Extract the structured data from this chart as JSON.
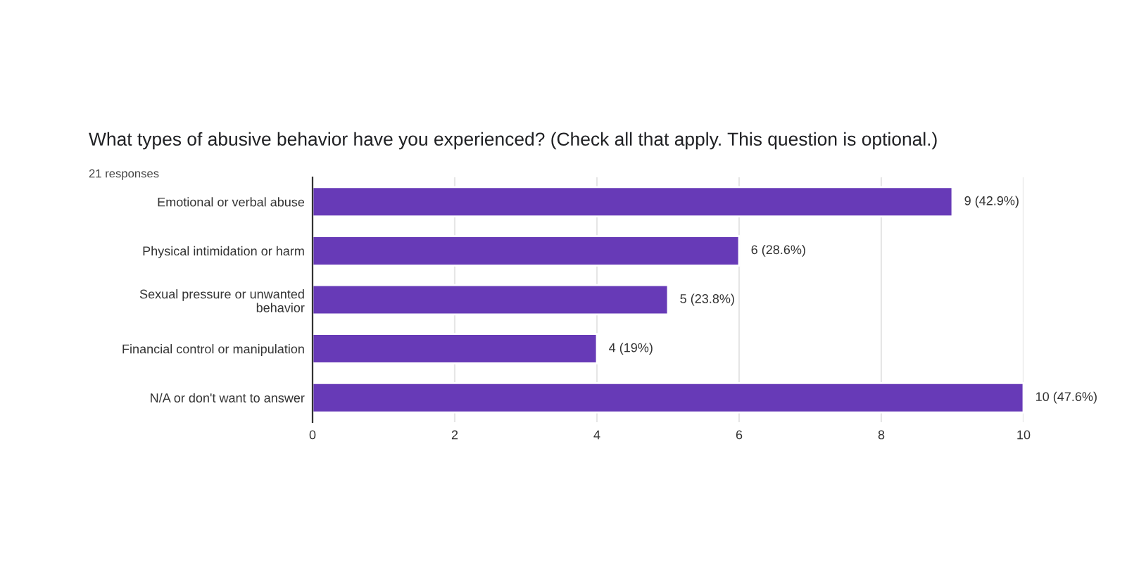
{
  "chart_data": {
    "type": "bar",
    "orientation": "horizontal",
    "title": "What types of abusive behavior have you experienced? (Check all that apply. This question is optional.)",
    "subtitle": "21 responses",
    "categories": [
      "Emotional or verbal abuse",
      "Physical intimidation or harm",
      "Sexual pressure or unwanted\nbehavior",
      "Financial control or manipulation",
      "N/A or don't want to answer"
    ],
    "values": [
      9,
      6,
      5,
      4,
      10
    ],
    "value_labels": [
      "9 (42.9%)",
      "6 (28.6%)",
      "5 (23.8%)",
      "4 (19%)",
      "10 (47.6%)"
    ],
    "color": "#673ab7",
    "xlim": [
      0,
      10
    ],
    "xticks": [
      0,
      2,
      4,
      6,
      8,
      10
    ],
    "grid": "x",
    "legend": false
  }
}
